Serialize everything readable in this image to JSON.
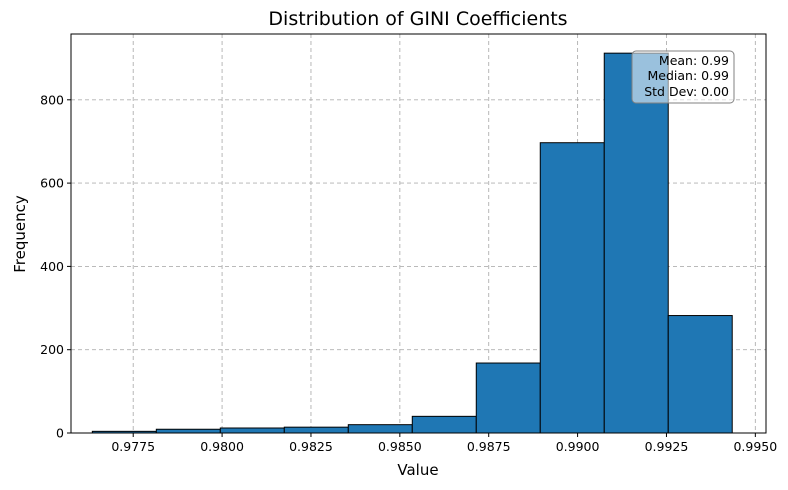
{
  "chart_data": {
    "type": "histogram",
    "title": "Distribution of GINI Coefficients",
    "xlabel": "Value",
    "ylabel": "Frequency",
    "bin_edges": [
      0.97635,
      0.97815,
      0.97995,
      0.98175,
      0.98355,
      0.98535,
      0.98715,
      0.98895,
      0.99075,
      0.99255,
      0.99435
    ],
    "values": [
      4,
      9,
      12,
      14,
      20,
      40,
      168,
      697,
      912,
      282
    ],
    "xlim": [
      0.97575,
      0.9953
    ],
    "ylim": [
      0,
      958
    ],
    "xticks": [
      0.9775,
      0.98,
      0.9825,
      0.985,
      0.9875,
      0.99,
      0.9925,
      0.995
    ],
    "xtick_labels": [
      "0.9775",
      "0.9800",
      "0.9825",
      "0.9850",
      "0.9875",
      "0.9900",
      "0.9925",
      "0.9950"
    ],
    "yticks": [
      0,
      200,
      400,
      600,
      800
    ],
    "ytick_labels": [
      "0",
      "200",
      "400",
      "600",
      "800"
    ],
    "grid": true,
    "bar_color": "#1f77b4",
    "edge_color": "#000000",
    "stats_box": {
      "lines": [
        "Mean: 0.99",
        "Median: 0.99",
        "Std Dev: 0.00"
      ],
      "placement": "top-right"
    }
  }
}
